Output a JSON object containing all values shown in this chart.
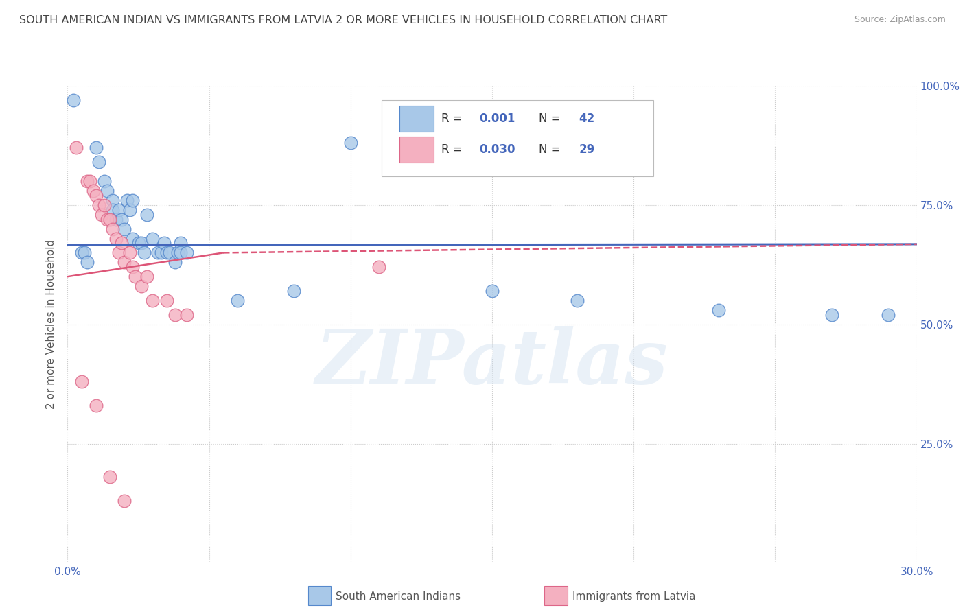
{
  "title": "SOUTH AMERICAN INDIAN VS IMMIGRANTS FROM LATVIA 2 OR MORE VEHICLES IN HOUSEHOLD CORRELATION CHART",
  "source": "Source: ZipAtlas.com",
  "ylabel": "2 or more Vehicles in Household",
  "xlim": [
    0.0,
    0.3
  ],
  "ylim": [
    0.0,
    1.0
  ],
  "xticks": [
    0.0,
    0.05,
    0.1,
    0.15,
    0.2,
    0.25,
    0.3
  ],
  "xtick_labels": [
    "0.0%",
    "",
    "",
    "",
    "",
    "",
    "30.0%"
  ],
  "yticks": [
    0.0,
    0.25,
    0.5,
    0.75,
    1.0
  ],
  "ytick_labels_right": [
    "",
    "25.0%",
    "50.0%",
    "75.0%",
    "100.0%"
  ],
  "series1_label": "South American Indians",
  "series2_label": "Immigrants from Latvia",
  "series1_color": "#a8c8e8",
  "series2_color": "#f4b0c0",
  "series1_edge_color": "#5588cc",
  "series2_edge_color": "#dd6688",
  "series1_line_color": "#4466bb",
  "series2_line_color": "#dd5577",
  "blue_dots": [
    [
      0.002,
      0.97
    ],
    [
      0.01,
      0.87
    ],
    [
      0.011,
      0.84
    ],
    [
      0.013,
      0.8
    ],
    [
      0.014,
      0.78
    ],
    [
      0.016,
      0.76
    ],
    [
      0.016,
      0.74
    ],
    [
      0.017,
      0.72
    ],
    [
      0.018,
      0.74
    ],
    [
      0.019,
      0.72
    ],
    [
      0.02,
      0.7
    ],
    [
      0.021,
      0.76
    ],
    [
      0.022,
      0.74
    ],
    [
      0.023,
      0.68
    ],
    [
      0.023,
      0.76
    ],
    [
      0.025,
      0.67
    ],
    [
      0.026,
      0.67
    ],
    [
      0.027,
      0.65
    ],
    [
      0.028,
      0.73
    ],
    [
      0.03,
      0.68
    ],
    [
      0.032,
      0.65
    ],
    [
      0.033,
      0.65
    ],
    [
      0.034,
      0.67
    ],
    [
      0.035,
      0.65
    ],
    [
      0.036,
      0.65
    ],
    [
      0.038,
      0.63
    ],
    [
      0.039,
      0.65
    ],
    [
      0.04,
      0.67
    ],
    [
      0.04,
      0.65
    ],
    [
      0.042,
      0.65
    ],
    [
      0.005,
      0.65
    ],
    [
      0.006,
      0.65
    ],
    [
      0.007,
      0.63
    ],
    [
      0.06,
      0.55
    ],
    [
      0.08,
      0.57
    ],
    [
      0.1,
      0.88
    ],
    [
      0.12,
      0.83
    ],
    [
      0.15,
      0.57
    ],
    [
      0.18,
      0.55
    ],
    [
      0.23,
      0.53
    ],
    [
      0.27,
      0.52
    ],
    [
      0.29,
      0.52
    ]
  ],
  "pink_dots": [
    [
      0.003,
      0.87
    ],
    [
      0.007,
      0.8
    ],
    [
      0.008,
      0.8
    ],
    [
      0.009,
      0.78
    ],
    [
      0.01,
      0.77
    ],
    [
      0.011,
      0.75
    ],
    [
      0.012,
      0.73
    ],
    [
      0.013,
      0.75
    ],
    [
      0.014,
      0.72
    ],
    [
      0.015,
      0.72
    ],
    [
      0.016,
      0.7
    ],
    [
      0.017,
      0.68
    ],
    [
      0.018,
      0.65
    ],
    [
      0.019,
      0.67
    ],
    [
      0.02,
      0.63
    ],
    [
      0.022,
      0.65
    ],
    [
      0.023,
      0.62
    ],
    [
      0.024,
      0.6
    ],
    [
      0.026,
      0.58
    ],
    [
      0.028,
      0.6
    ],
    [
      0.03,
      0.55
    ],
    [
      0.035,
      0.55
    ],
    [
      0.038,
      0.52
    ],
    [
      0.042,
      0.52
    ],
    [
      0.11,
      0.62
    ],
    [
      0.005,
      0.38
    ],
    [
      0.01,
      0.33
    ],
    [
      0.015,
      0.18
    ],
    [
      0.02,
      0.13
    ]
  ],
  "blue_trend": [
    0.0,
    0.3,
    0.666,
    0.668
  ],
  "pink_trend_solid": [
    0.0,
    0.055,
    0.6,
    0.65
  ],
  "pink_trend_dashed": [
    0.055,
    0.3,
    0.65,
    0.668
  ],
  "watermark_text": "ZIPatlas",
  "background_color": "#ffffff",
  "grid_color": "#cccccc",
  "title_color": "#444444",
  "tick_color": "#4466bb"
}
